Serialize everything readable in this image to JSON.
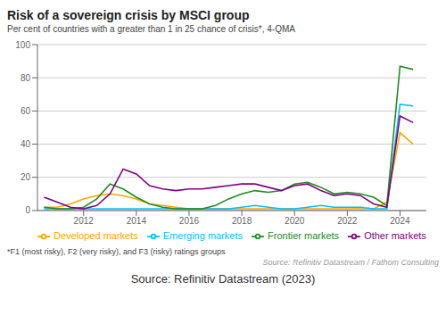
{
  "chart_data": {
    "type": "line",
    "title": "Risk of a sovereign crisis by MSCI group",
    "subtitle": "Per cent of countries with a greater than 1 in 25 chance of crisis*, 4-QMA",
    "annotations": [
      "*F1 (most risky), F2 (very risky), and F3 (risky) ratings groups",
      "Source: Refinitiv Datastream / Fathom Consulting",
      "Source: Refinitiv Datastream (2023)"
    ],
    "x": [
      2010.5,
      2011.0,
      2011.5,
      2012.0,
      2012.5,
      2013.0,
      2013.5,
      2014.0,
      2014.5,
      2015.0,
      2015.5,
      2016.0,
      2016.5,
      2017.0,
      2017.5,
      2018.0,
      2018.5,
      2019.0,
      2019.5,
      2020.0,
      2020.5,
      2021.0,
      2021.5,
      2022.0,
      2022.5,
      2023.0,
      2023.5,
      2024.0,
      2024.5
    ],
    "series": [
      {
        "name": "Developed markets",
        "color": "#FFA500",
        "values": [
          2,
          2,
          4,
          7,
          9,
          10,
          9,
          7,
          4,
          3,
          2,
          1,
          1,
          1,
          1,
          1,
          1,
          1,
          1,
          1,
          1,
          1,
          1,
          1,
          1,
          1,
          5,
          47,
          40
        ]
      },
      {
        "name": "Emerging markets",
        "color": "#00BFFF",
        "values": [
          1,
          1,
          1,
          1,
          1,
          1,
          1,
          1,
          1,
          1,
          1,
          1,
          1,
          1,
          1,
          2,
          3,
          2,
          1,
          1,
          2,
          3,
          2,
          2,
          2,
          1,
          1,
          64,
          63
        ]
      },
      {
        "name": "Frontier markets",
        "color": "#228B22",
        "values": [
          2,
          1,
          1,
          2,
          7,
          16,
          13,
          8,
          4,
          2,
          1,
          1,
          1,
          3,
          7,
          10,
          12,
          11,
          12,
          16,
          17,
          14,
          10,
          11,
          10,
          8,
          3,
          87,
          85
        ]
      },
      {
        "name": "Other markets",
        "color": "#800080",
        "values": [
          8,
          5,
          2,
          1,
          3,
          10,
          25,
          22,
          15,
          13,
          12,
          13,
          13,
          14,
          15,
          16,
          16,
          14,
          12,
          15,
          16,
          12,
          9,
          10,
          9,
          4,
          2,
          57,
          53
        ]
      }
    ],
    "xlim": [
      2010.25,
      2025.0
    ],
    "xticks": [
      2012,
      2014,
      2016,
      2018,
      2020,
      2022,
      2024
    ],
    "ylim": [
      0,
      100
    ],
    "yticks": [
      0,
      20,
      40,
      60,
      80,
      100
    ],
    "grid": true,
    "legend": "bottom"
  }
}
